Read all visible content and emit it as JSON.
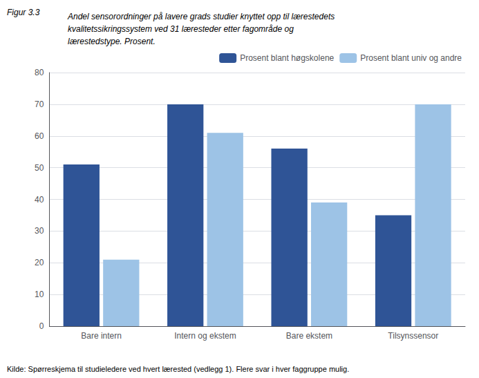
{
  "chart_data": {
    "type": "bar",
    "title": "Andel sensorordninger på lavere grads studier knyttet opp til lærestedets\nkvalitetssikringssystem ved 31 læresteder etter fagområde og\nlærestedstype. Prosent.",
    "annotations": [
      "Figur 3.3",
      "Kilde: Spørreskjema til studieledere ved hvert lærested (vedlegg 1). Flere svar i hver faggruppe mulig."
    ],
    "categories": [
      "Bare intern",
      "Intern og ekstem",
      "Bare ekstem",
      "Tilsynssensor"
    ],
    "series": [
      {
        "name": "Prosent blant høgskolene",
        "color": "#2F5496",
        "values": [
          51,
          70,
          56,
          35
        ]
      },
      {
        "name": "Prosent blant univ og andre",
        "color": "#9DC3E6",
        "values": [
          21,
          61,
          39,
          70
        ]
      }
    ],
    "ylim": [
      0,
      80
    ],
    "yticks": [
      0,
      10,
      20,
      30,
      40,
      50,
      60,
      70,
      80
    ],
    "grid": true,
    "legend": "upper right"
  }
}
